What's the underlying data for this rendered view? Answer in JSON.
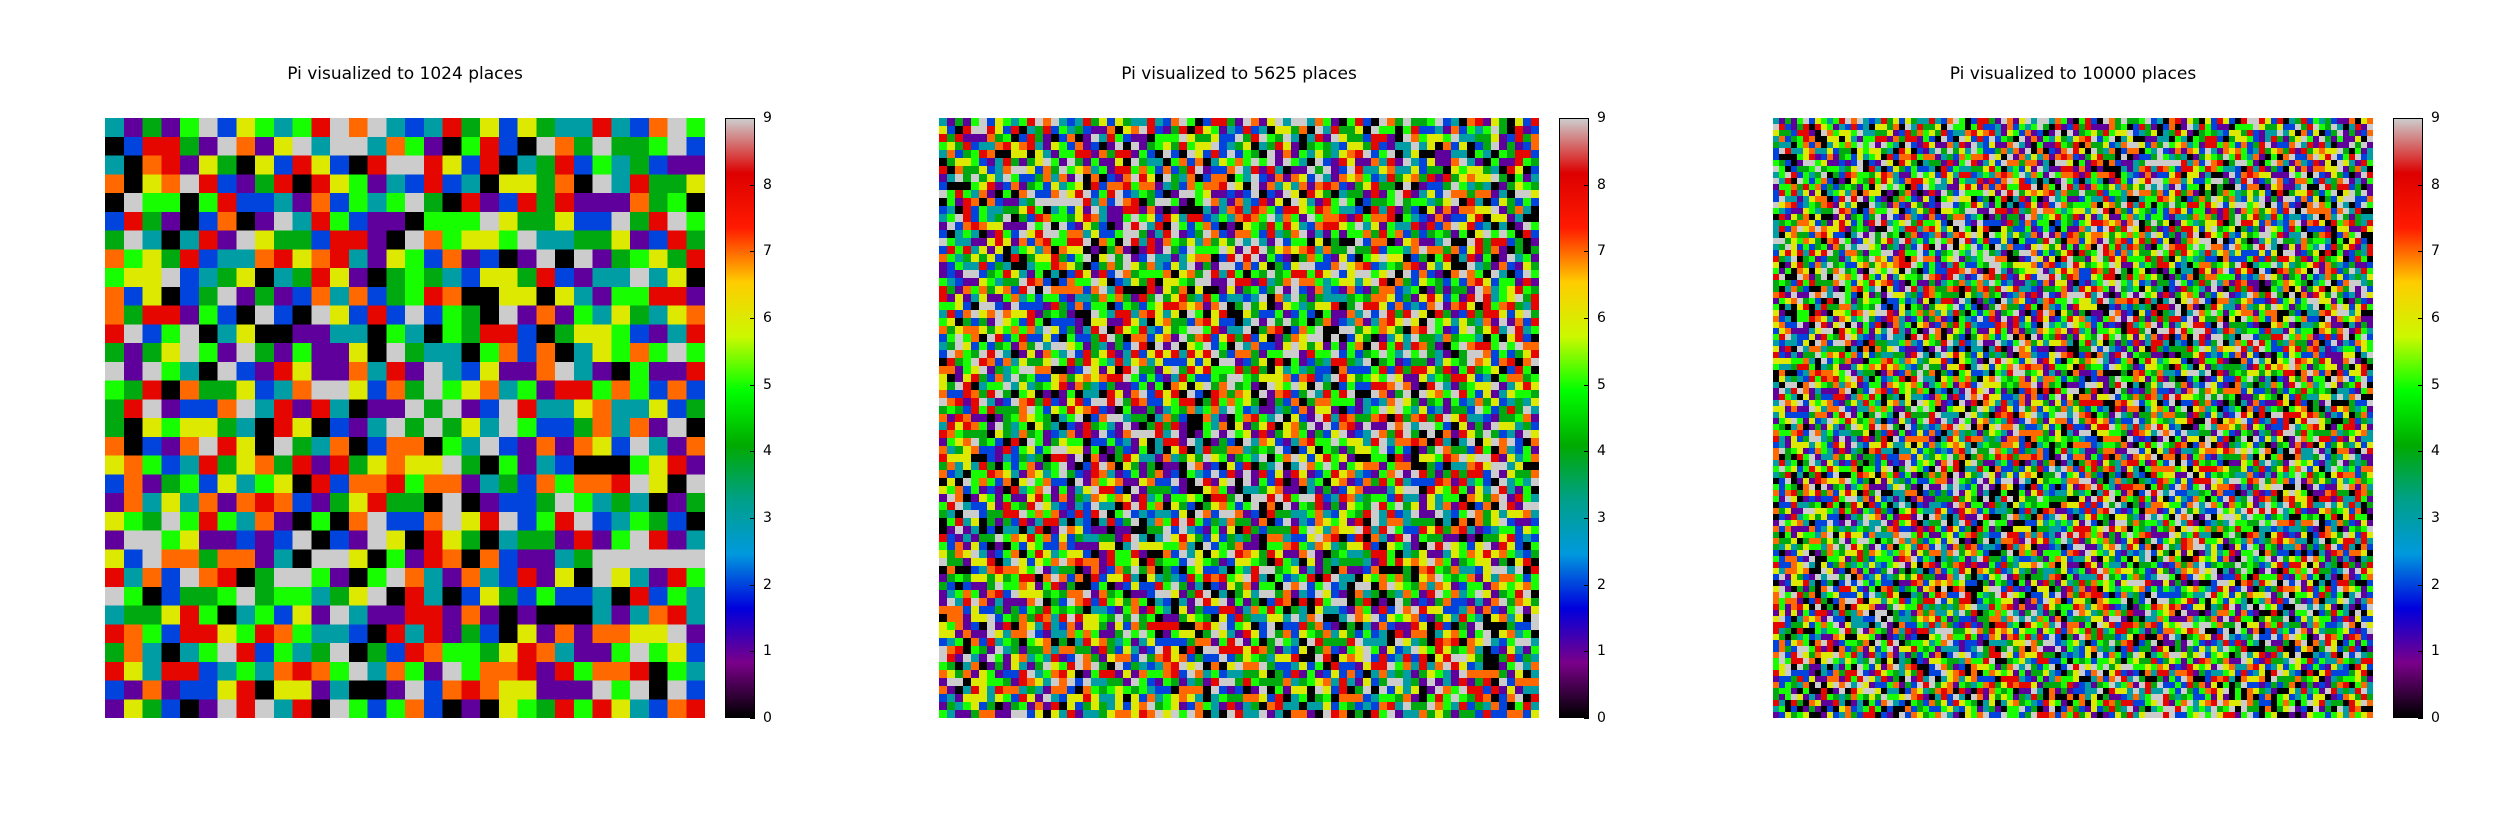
{
  "chart_data": [
    {
      "type": "heatmap",
      "title": "Pi visualized to 1024 places",
      "digits_shown": 1024,
      "grid": [
        32,
        32
      ],
      "colorbar": {
        "min": 0,
        "max": 9,
        "ticks": [
          "0",
          "1",
          "2",
          "3",
          "4",
          "5",
          "6",
          "7",
          "8",
          "9"
        ]
      }
    },
    {
      "type": "heatmap",
      "title": "Pi visualized to 5625 places",
      "digits_shown": 5625,
      "grid": [
        75,
        75
      ],
      "colorbar": {
        "min": 0,
        "max": 9,
        "ticks": [
          "0",
          "1",
          "2",
          "3",
          "4",
          "5",
          "6",
          "7",
          "8",
          "9"
        ]
      }
    },
    {
      "type": "heatmap",
      "title": "Pi visualized to 10000 places",
      "digits_shown": 10000,
      "grid": [
        100,
        100
      ],
      "colorbar": {
        "min": 0,
        "max": 9,
        "ticks": [
          "0",
          "1",
          "2",
          "3",
          "4",
          "5",
          "6",
          "7",
          "8",
          "9"
        ]
      }
    }
  ],
  "colormap": {
    "name": "nipy_spectral",
    "stops": [
      "#000000",
      "#7a008a",
      "#0000dd",
      "#0099dd",
      "#00a088",
      "#00aa00",
      "#00ff00",
      "#ccf800",
      "#ffcc00",
      "#ff1a00",
      "#dd0000",
      "#cccccc"
    ]
  }
}
